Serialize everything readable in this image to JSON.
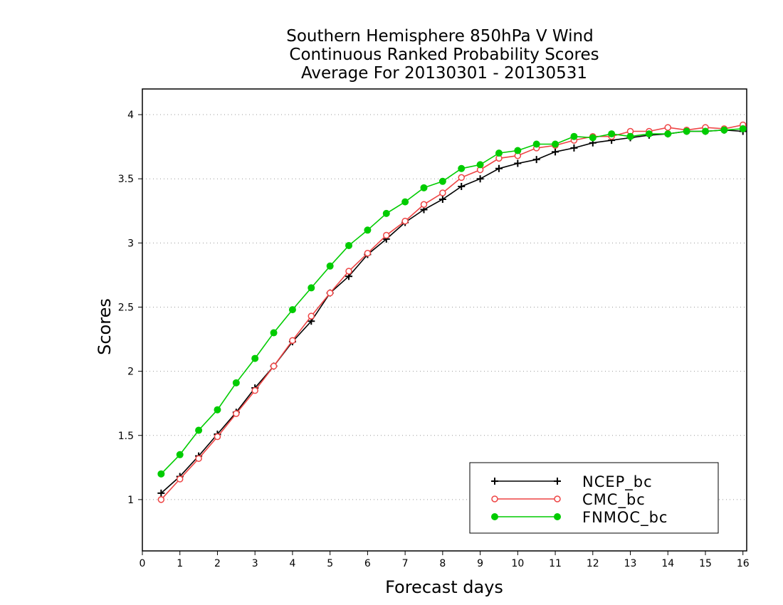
{
  "chart_data": {
    "type": "line",
    "title": [
      "Southern Hemisphere 850hPa V Wind",
      "Continuous Ranked Probability Scores",
      "Average For 20130301 - 20130531"
    ],
    "xlabel": "Forecast days",
    "ylabel": "Scores",
    "xlim": [
      0,
      16.1
    ],
    "ylim": [
      0.6,
      4.2
    ],
    "xticks": [
      0,
      1,
      2,
      3,
      4,
      5,
      6,
      7,
      8,
      9,
      10,
      11,
      12,
      13,
      14,
      15,
      16
    ],
    "yticks": [
      1,
      1.5,
      2,
      2.5,
      3,
      3.5,
      4
    ],
    "ytick_labels": [
      "1",
      "1.5",
      "2",
      "2.5",
      "3",
      "3.5",
      "4"
    ],
    "grid": "horizontal dotted",
    "legend_position": "bottom-right",
    "x": [
      0.5,
      1,
      1.5,
      2,
      2.5,
      3,
      3.5,
      4,
      4.5,
      5,
      5.5,
      6,
      6.5,
      7,
      7.5,
      8,
      8.5,
      9,
      9.5,
      10,
      10.5,
      11,
      11.5,
      12,
      12.5,
      13,
      13.5,
      14,
      14.5,
      15,
      15.5,
      16
    ],
    "series": [
      {
        "name": "NCEP_bc",
        "color": "#000000",
        "marker": "plus",
        "values": [
          1.05,
          1.18,
          1.34,
          1.51,
          1.68,
          1.87,
          2.04,
          2.23,
          2.39,
          2.61,
          2.74,
          2.91,
          3.03,
          3.16,
          3.26,
          3.34,
          3.44,
          3.5,
          3.58,
          3.62,
          3.65,
          3.71,
          3.74,
          3.78,
          3.8,
          3.82,
          3.84,
          3.85,
          3.87,
          3.87,
          3.88,
          3.87
        ]
      },
      {
        "name": "CMC_bc",
        "color": "#ee4444",
        "marker": "open-circle",
        "values": [
          1.0,
          1.16,
          1.32,
          1.49,
          1.67,
          1.85,
          2.04,
          2.24,
          2.43,
          2.61,
          2.78,
          2.92,
          3.06,
          3.17,
          3.3,
          3.39,
          3.51,
          3.57,
          3.66,
          3.68,
          3.74,
          3.76,
          3.8,
          3.83,
          3.83,
          3.87,
          3.87,
          3.9,
          3.88,
          3.9,
          3.89,
          3.92
        ]
      },
      {
        "name": "FNMOC_bc",
        "color": "#00cc00",
        "marker": "filled-circle",
        "values": [
          1.2,
          1.35,
          1.54,
          1.7,
          1.91,
          2.1,
          2.3,
          2.48,
          2.65,
          2.82,
          2.98,
          3.1,
          3.23,
          3.32,
          3.43,
          3.48,
          3.58,
          3.61,
          3.7,
          3.72,
          3.77,
          3.77,
          3.83,
          3.82,
          3.85,
          3.83,
          3.85,
          3.85,
          3.87,
          3.87,
          3.88,
          3.89
        ]
      }
    ]
  }
}
